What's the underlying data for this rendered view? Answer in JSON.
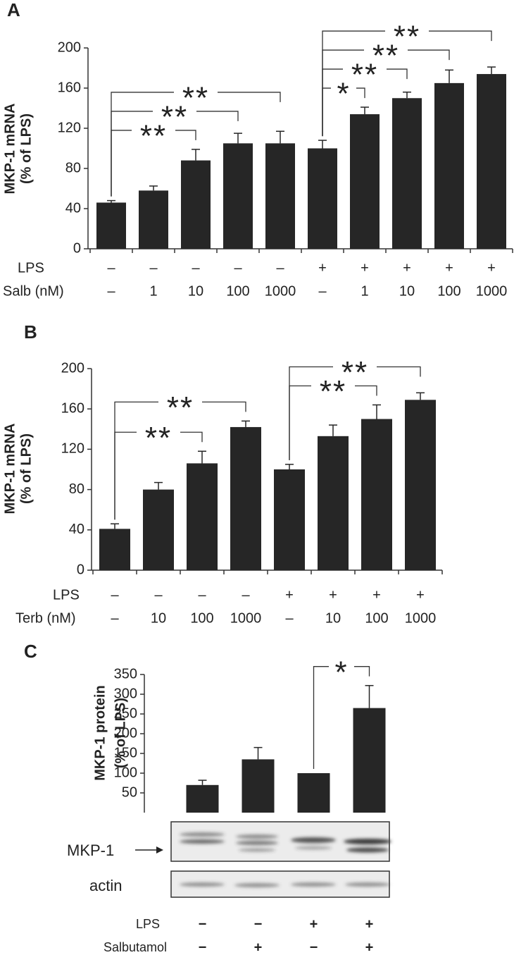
{
  "chart_data": [
    {
      "type": "bar",
      "panel": "A",
      "y_label": [
        "MKP-1 mRNA",
        "(% of LPS)"
      ],
      "category_rows": [
        {
          "label": "LPS",
          "labels": [
            "–",
            "–",
            "–",
            "–",
            "–",
            "+",
            "+",
            "+",
            "+",
            "+"
          ]
        },
        {
          "label": "Salb (nM)",
          "labels": [
            "–",
            "1",
            "10",
            "100",
            "1000",
            "–",
            "1",
            "10",
            "100",
            "1000"
          ]
        }
      ],
      "values": [
        46,
        58,
        88,
        105,
        105,
        100,
        134,
        150,
        165,
        174
      ],
      "errors": [
        2,
        4.5,
        11,
        10,
        12,
        8,
        7,
        6,
        13,
        7
      ],
      "color": "#262626",
      "ylim": [
        0,
        200
      ],
      "yticks": [
        0,
        40,
        80,
        120,
        160,
        200
      ],
      "significance": [
        {
          "from": 0,
          "to": 2,
          "label": "**"
        },
        {
          "from": 0,
          "to": 3,
          "label": "**"
        },
        {
          "from": 0,
          "to": 4,
          "label": "**"
        },
        {
          "from": 5,
          "to": 6,
          "label": "*"
        },
        {
          "from": 5,
          "to": 7,
          "label": "**"
        },
        {
          "from": 5,
          "to": 8,
          "label": "**"
        },
        {
          "from": 5,
          "to": 9,
          "label": "**"
        }
      ]
    },
    {
      "type": "bar",
      "panel": "B",
      "y_label": [
        "MKP-1 mRNA",
        "(% of LPS)"
      ],
      "category_rows": [
        {
          "label": "LPS",
          "labels": [
            "–",
            "–",
            "–",
            "–",
            "+",
            "+",
            "+",
            "+"
          ]
        },
        {
          "label": "Terb (nM)",
          "labels": [
            "–",
            "10",
            "100",
            "1000",
            "–",
            "10",
            "100",
            "1000"
          ]
        }
      ],
      "values": [
        41,
        80,
        106,
        142,
        100,
        133,
        150,
        169
      ],
      "errors": [
        5,
        7,
        12,
        6,
        5,
        11,
        14,
        7
      ],
      "color": "#262626",
      "ylim": [
        0,
        200
      ],
      "yticks": [
        0,
        40,
        80,
        120,
        160,
        200
      ],
      "significance": [
        {
          "from": 0,
          "to": 2,
          "label": "**"
        },
        {
          "from": 0,
          "to": 3,
          "label": "**"
        },
        {
          "from": 4,
          "to": 6,
          "label": "**"
        },
        {
          "from": 4,
          "to": 7,
          "label": "**"
        }
      ]
    },
    {
      "type": "bar",
      "panel": "C",
      "y_label": [
        "MKP-1 protein",
        "(% of LPS)"
      ],
      "category_rows": [
        {
          "label": "LPS",
          "labels": [
            "−",
            "−",
            "+",
            "+"
          ]
        },
        {
          "label": "Salbutamol",
          "labels": [
            "−",
            "+",
            "−",
            "+"
          ]
        }
      ],
      "values": [
        70,
        135,
        100,
        265
      ],
      "errors": [
        12,
        30,
        null,
        57
      ],
      "color": "#262626",
      "ylim": [
        0,
        350
      ],
      "yticks": [
        50,
        100,
        150,
        200,
        250,
        300,
        350
      ],
      "significance": [
        {
          "from": 2,
          "to": 3,
          "label": "*"
        }
      ],
      "blots": [
        {
          "label": "MKP-1"
        },
        {
          "label": "actin"
        }
      ]
    }
  ]
}
